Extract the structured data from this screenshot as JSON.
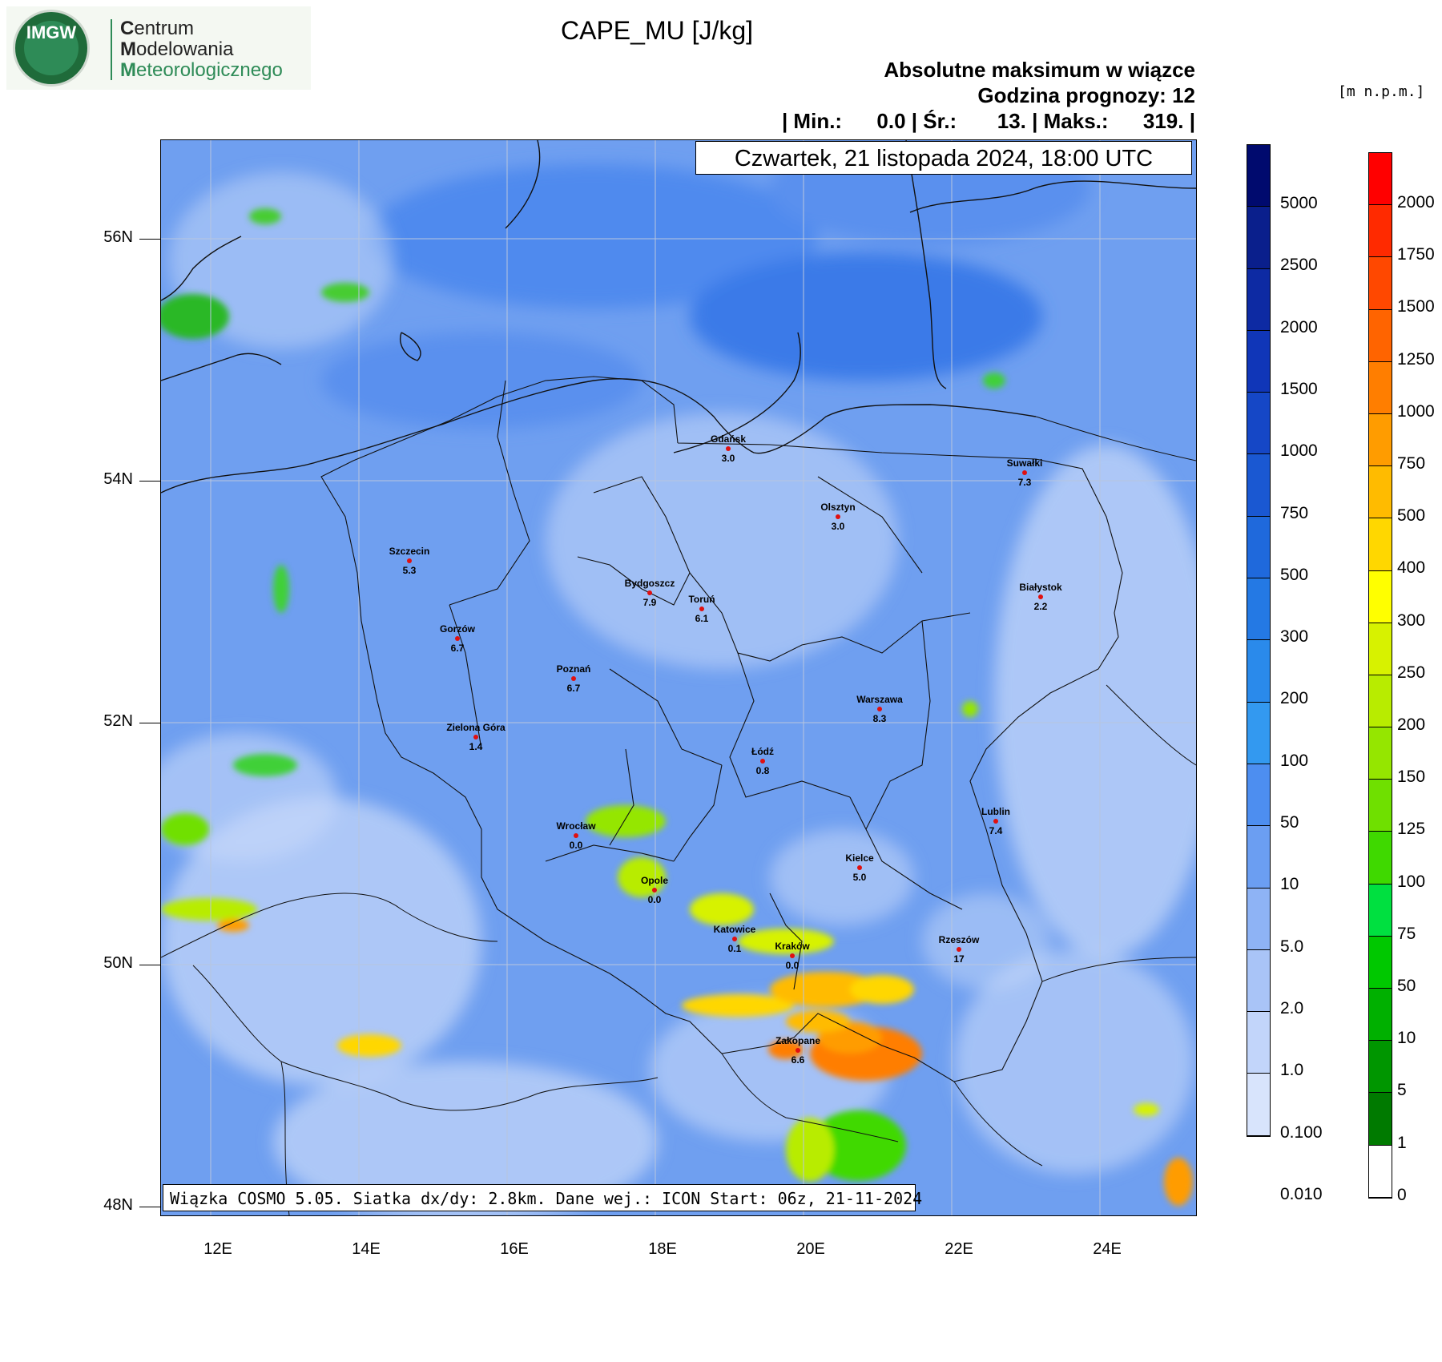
{
  "logo": {
    "badge": "IMGW",
    "line1_first": "C",
    "line1_rest": "entrum",
    "line2_first": "M",
    "line2_rest": "odelowania",
    "line3_first": "M",
    "line3_rest": "eteorologicznego"
  },
  "title": "CAPE_MU [J/kg]",
  "header": {
    "line1": "Absolutne maksimum w wiązce",
    "line2": "Godzina prognozy: 12",
    "line3": "| Min.:      0.0 | Śr.:       13. | Maks.:      319. |"
  },
  "date_label": "Czwartek, 21 listopada 2024, 18:00 UTC",
  "footer_label": "Wiązka COSMO 5.05. Siatka dx/dy: 2.8km. Dane wej.: ICON Start: 06z, 21-11-2024",
  "unit_label": "[m n.p.m.]",
  "latitudes": [
    "56N",
    "54N",
    "52N",
    "50N",
    "48N"
  ],
  "longitudes": [
    "12E",
    "14E",
    "16E",
    "18E",
    "20E",
    "22E",
    "24E"
  ],
  "blue_scale": {
    "labels": [
      "5000",
      "2500",
      "2000",
      "1500",
      "1000",
      "750",
      "500",
      "300",
      "200",
      "100",
      "50",
      "10",
      "5.0",
      "2.0",
      "1.0",
      "0.100",
      "0.010"
    ],
    "colors": [
      "#000a6e",
      "#0a1f8c",
      "#0d2aa3",
      "#1036b8",
      "#1547c6",
      "#1a58d2",
      "#1f69dc",
      "#2479e4",
      "#2a8aeb",
      "#3399f0",
      "#4d8ef0",
      "#6b9ef2",
      "#8eb3f5",
      "#a9c4f7",
      "#c2d5fa",
      "#d8e4fc"
    ]
  },
  "color_scale": {
    "labels": [
      "2000",
      "1750",
      "1500",
      "1250",
      "1000",
      "750",
      "500",
      "400",
      "300",
      "250",
      "200",
      "150",
      "125",
      "100",
      "75",
      "50",
      "10",
      "5",
      "1",
      "0"
    ],
    "colors": [
      "#ff0000",
      "#ff2a00",
      "#ff4800",
      "#ff6400",
      "#ff7e00",
      "#ff9c00",
      "#ffbb00",
      "#ffd700",
      "#ffff00",
      "#d7f200",
      "#b8ec00",
      "#95e600",
      "#6fe000",
      "#3fd900",
      "#00e040",
      "#00c800",
      "#00b000",
      "#009600",
      "#007a00",
      "#ffffff"
    ]
  },
  "cities": [
    {
      "name": "Gdańsk",
      "value": "3.0"
    },
    {
      "name": "Suwałki",
      "value": "7.3"
    },
    {
      "name": "Olsztyn",
      "value": "3.0"
    },
    {
      "name": "Szczecin",
      "value": "5.3"
    },
    {
      "name": "Bydgoszcz",
      "value": "7.9"
    },
    {
      "name": "Toruń",
      "value": "6.1"
    },
    {
      "name": "Białystok",
      "value": "2.2"
    },
    {
      "name": "Gorzów",
      "value": "6.7"
    },
    {
      "name": "Poznań",
      "value": "6.7"
    },
    {
      "name": "Warszawa",
      "value": "8.3"
    },
    {
      "name": "Zielona Góra",
      "value": "1.4"
    },
    {
      "name": "Łódź",
      "value": "0.8"
    },
    {
      "name": "Wrocław",
      "value": "0.0"
    },
    {
      "name": "Lublin",
      "value": "7.4"
    },
    {
      "name": "Kielce",
      "value": "5.0"
    },
    {
      "name": "Opole",
      "value": "0.0"
    },
    {
      "name": "Katowice",
      "value": "0.1"
    },
    {
      "name": "Kraków",
      "value": "0.0"
    },
    {
      "name": "Rzeszów",
      "value": "17"
    },
    {
      "name": "Zakopane",
      "value": "6.6"
    }
  ]
}
